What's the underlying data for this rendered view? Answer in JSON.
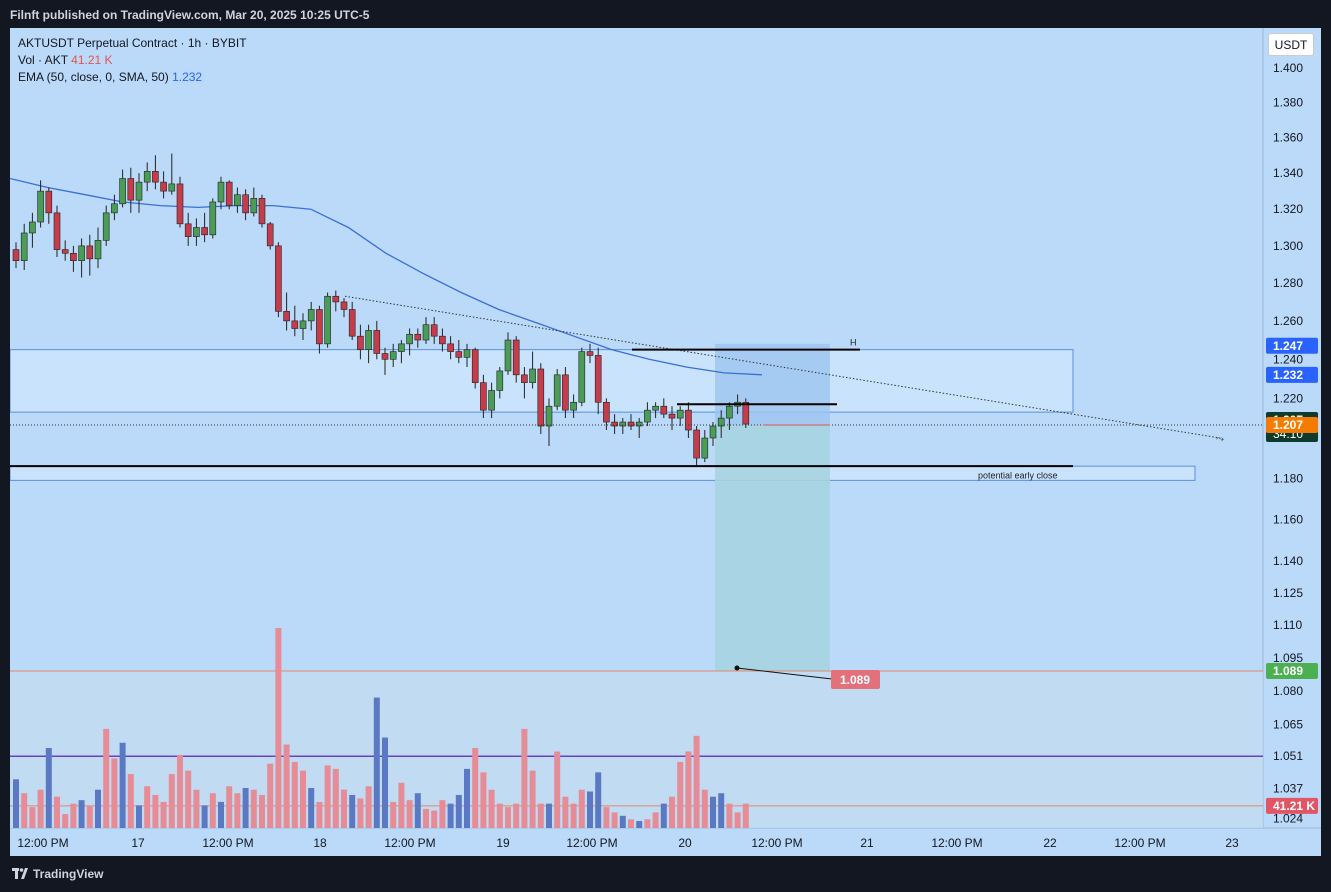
{
  "header": {
    "publish_text": "Filnft published on TradingView.com, Mar 20, 2025 10:25 UTC-5"
  },
  "legend": {
    "symbol_line": "AKTUSDT Perpetual Contract · 1h · BYBIT",
    "vol_label": "Vol · AKT",
    "vol_value": "41.21 K",
    "ema_label": "EMA (50, close, 0, SMA, 50)",
    "ema_value": "1.232"
  },
  "currency_button": "USDT",
  "footer": {
    "brand": "TradingView"
  },
  "colors": {
    "background": "#bbd9f8",
    "up": "#4a9c56",
    "down": "#c53c4a",
    "ema": "#3a6fd8",
    "volume_up": "#5b79c2",
    "volume_down": "#e58c97",
    "stop_zone": "#9ec4f0",
    "target_zone": "#a7d3e0"
  },
  "chart_data": {
    "type": "candlestick",
    "price_axis": {
      "ticks": [
        "1.400",
        "1.380",
        "1.360",
        "1.340",
        "1.320",
        "1.300",
        "1.280",
        "1.260",
        "1.240",
        "1.220",
        "1.200",
        "1.180",
        "1.160",
        "1.140",
        "1.125",
        "1.110",
        "1.095",
        "1.080",
        "1.065",
        "1.051",
        "1.037",
        "1.024"
      ],
      "scale": "log"
    },
    "time_axis": {
      "ticks": [
        "12:00 PM",
        "17",
        "12:00 PM",
        "18",
        "12:00 PM",
        "19",
        "12:00 PM",
        "20",
        "12:00 PM",
        "21",
        "12:00 PM",
        "22",
        "12:00 PM",
        "23"
      ]
    },
    "price_badges": [
      {
        "label": "1.247",
        "price": 1.247,
        "color": "#2962ff",
        "text": "#ffffff"
      },
      {
        "label": "1.232",
        "price": 1.232,
        "color": "#2962ff",
        "text": "#ffffff"
      },
      {
        "label": "1.207",
        "sub": "34:10",
        "price": 1.207,
        "color": "#0f3b2c",
        "text": "#ffffff"
      },
      {
        "label": "1.207",
        "price": 1.2065,
        "color": "#f57c00",
        "text": "#ffffff"
      },
      {
        "label": "1.089",
        "price": 1.089,
        "color": "#4caf50",
        "text": "#ffffff"
      },
      {
        "label": "41.21 K",
        "price": 1.0295,
        "color": "#e25565",
        "text": "#ffffff"
      }
    ],
    "target_label": "1.089",
    "annotations": {
      "h_marker": "H",
      "early_close": "potential early close"
    },
    "candles": [
      [
        1.298,
        1.302,
        1.288,
        1.292
      ],
      [
        1.292,
        1.312,
        1.287,
        1.307
      ],
      [
        1.307,
        1.318,
        1.299,
        1.313
      ],
      [
        1.313,
        1.336,
        1.31,
        1.33
      ],
      [
        1.33,
        1.332,
        1.312,
        1.318
      ],
      [
        1.318,
        1.322,
        1.294,
        1.298
      ],
      [
        1.298,
        1.303,
        1.292,
        1.296
      ],
      [
        1.296,
        1.3,
        1.286,
        1.292
      ],
      [
        1.292,
        1.304,
        1.283,
        1.3
      ],
      [
        1.3,
        1.306,
        1.284,
        1.293
      ],
      [
        1.293,
        1.31,
        1.288,
        1.303
      ],
      [
        1.303,
        1.322,
        1.3,
        1.318
      ],
      [
        1.318,
        1.328,
        1.314,
        1.323
      ],
      [
        1.323,
        1.342,
        1.321,
        1.337
      ],
      [
        1.337,
        1.343,
        1.318,
        1.325
      ],
      [
        1.325,
        1.34,
        1.318,
        1.335
      ],
      [
        1.335,
        1.346,
        1.33,
        1.341
      ],
      [
        1.341,
        1.35,
        1.331,
        1.335
      ],
      [
        1.335,
        1.341,
        1.326,
        1.33
      ],
      [
        1.33,
        1.351,
        1.328,
        1.334
      ],
      [
        1.334,
        1.338,
        1.31,
        1.312
      ],
      [
        1.312,
        1.318,
        1.3,
        1.305
      ],
      [
        1.305,
        1.315,
        1.3,
        1.31
      ],
      [
        1.31,
        1.318,
        1.302,
        1.306
      ],
      [
        1.306,
        1.326,
        1.304,
        1.324
      ],
      [
        1.324,
        1.338,
        1.32,
        1.335
      ],
      [
        1.335,
        1.336,
        1.32,
        1.322
      ],
      [
        1.322,
        1.332,
        1.318,
        1.328
      ],
      [
        1.328,
        1.331,
        1.314,
        1.318
      ],
      [
        1.318,
        1.332,
        1.316,
        1.326
      ],
      [
        1.326,
        1.328,
        1.31,
        1.312
      ],
      [
        1.312,
        1.313,
        1.298,
        1.3
      ],
      [
        1.3,
        1.302,
        1.262,
        1.265
      ],
      [
        1.265,
        1.275,
        1.255,
        1.26
      ],
      [
        1.26,
        1.268,
        1.252,
        1.256
      ],
      [
        1.256,
        1.264,
        1.25,
        1.26
      ],
      [
        1.26,
        1.27,
        1.255,
        1.266
      ],
      [
        1.266,
        1.268,
        1.243,
        1.248
      ],
      [
        1.248,
        1.275,
        1.246,
        1.273
      ],
      [
        1.273,
        1.276,
        1.265,
        1.27
      ],
      [
        1.27,
        1.272,
        1.262,
        1.266
      ],
      [
        1.266,
        1.27,
        1.25,
        1.252
      ],
      [
        1.252,
        1.258,
        1.24,
        1.245
      ],
      [
        1.245,
        1.258,
        1.238,
        1.255
      ],
      [
        1.255,
        1.26,
        1.24,
        1.243
      ],
      [
        1.243,
        1.246,
        1.232,
        1.24
      ],
      [
        1.24,
        1.248,
        1.236,
        1.244
      ],
      [
        1.244,
        1.25,
        1.238,
        1.248
      ],
      [
        1.248,
        1.256,
        1.242,
        1.253
      ],
      [
        1.253,
        1.256,
        1.246,
        1.25
      ],
      [
        1.25,
        1.262,
        1.248,
        1.258
      ],
      [
        1.258,
        1.262,
        1.248,
        1.252
      ],
      [
        1.252,
        1.256,
        1.244,
        1.248
      ],
      [
        1.248,
        1.252,
        1.24,
        1.244
      ],
      [
        1.244,
        1.25,
        1.238,
        1.241
      ],
      [
        1.241,
        1.248,
        1.236,
        1.245
      ],
      [
        1.245,
        1.246,
        1.225,
        1.228
      ],
      [
        1.228,
        1.232,
        1.21,
        1.214
      ],
      [
        1.214,
        1.228,
        1.21,
        1.224
      ],
      [
        1.224,
        1.236,
        1.22,
        1.234
      ],
      [
        1.234,
        1.254,
        1.232,
        1.25
      ],
      [
        1.25,
        1.252,
        1.228,
        1.232
      ],
      [
        1.232,
        1.236,
        1.22,
        1.228
      ],
      [
        1.228,
        1.244,
        1.225,
        1.235
      ],
      [
        1.235,
        1.238,
        1.202,
        1.206
      ],
      [
        1.206,
        1.22,
        1.196,
        1.216
      ],
      [
        1.216,
        1.235,
        1.214,
        1.232
      ],
      [
        1.232,
        1.236,
        1.21,
        1.214
      ],
      [
        1.214,
        1.222,
        1.21,
        1.218
      ],
      [
        1.218,
        1.246,
        1.216,
        1.244
      ],
      [
        1.244,
        1.248,
        1.238,
        1.242
      ],
      [
        1.242,
        1.246,
        1.212,
        1.218
      ],
      [
        1.218,
        1.22,
        1.204,
        1.208
      ],
      [
        1.208,
        1.212,
        1.202,
        1.206
      ],
      [
        1.206,
        1.21,
        1.202,
        1.208
      ],
      [
        1.208,
        1.212,
        1.204,
        1.206
      ],
      [
        1.206,
        1.21,
        1.2,
        1.208
      ],
      [
        1.208,
        1.218,
        1.206,
        1.214
      ],
      [
        1.214,
        1.218,
        1.21,
        1.216
      ],
      [
        1.216,
        1.22,
        1.21,
        1.212
      ],
      [
        1.212,
        1.216,
        1.204,
        1.21
      ],
      [
        1.21,
        1.216,
        1.206,
        1.214
      ],
      [
        1.214,
        1.218,
        1.2,
        1.204
      ],
      [
        1.204,
        1.206,
        1.186,
        1.19
      ],
      [
        1.19,
        1.204,
        1.188,
        1.2
      ],
      [
        1.2,
        1.208,
        1.196,
        1.206
      ],
      [
        1.206,
        1.214,
        1.2,
        1.21
      ],
      [
        1.21,
        1.218,
        1.204,
        1.216
      ],
      [
        1.216,
        1.222,
        1.212,
        1.218
      ],
      [
        1.218,
        1.22,
        1.205,
        1.207
      ]
    ],
    "volume": [
      [
        28,
        1
      ],
      [
        20,
        0
      ],
      [
        12,
        0
      ],
      [
        22,
        0
      ],
      [
        46,
        1
      ],
      [
        18,
        0
      ],
      [
        8,
        0
      ],
      [
        14,
        0
      ],
      [
        16,
        1
      ],
      [
        13,
        0
      ],
      [
        22,
        1
      ],
      [
        57,
        0
      ],
      [
        40,
        0
      ],
      [
        49,
        1
      ],
      [
        31,
        0
      ],
      [
        13,
        1
      ],
      [
        24,
        0
      ],
      [
        19,
        0
      ],
      [
        15,
        0
      ],
      [
        31,
        0
      ],
      [
        42,
        0
      ],
      [
        33,
        0
      ],
      [
        22,
        0
      ],
      [
        13,
        1
      ],
      [
        20,
        0
      ],
      [
        15,
        1
      ],
      [
        24,
        0
      ],
      [
        20,
        0
      ],
      [
        23,
        1
      ],
      [
        22,
        0
      ],
      [
        19,
        0
      ],
      [
        37,
        0
      ],
      [
        115,
        0
      ],
      [
        48,
        0
      ],
      [
        38,
        0
      ],
      [
        33,
        0
      ],
      [
        23,
        1
      ],
      [
        15,
        0
      ],
      [
        36,
        0
      ],
      [
        34,
        0
      ],
      [
        22,
        0
      ],
      [
        19,
        1
      ],
      [
        17,
        0
      ],
      [
        24,
        0
      ],
      [
        75,
        1
      ],
      [
        52,
        1
      ],
      [
        15,
        0
      ],
      [
        26,
        0
      ],
      [
        16,
        0
      ],
      [
        20,
        1
      ],
      [
        11,
        0
      ],
      [
        10,
        0
      ],
      [
        16,
        0
      ],
      [
        14,
        1
      ],
      [
        19,
        1
      ],
      [
        34,
        1
      ],
      [
        46,
        0
      ],
      [
        32,
        0
      ],
      [
        22,
        0
      ],
      [
        14,
        0
      ],
      [
        12,
        0
      ],
      [
        14,
        0
      ],
      [
        57,
        0
      ],
      [
        33,
        0
      ],
      [
        14,
        0
      ],
      [
        14,
        1
      ],
      [
        44,
        0
      ],
      [
        18,
        0
      ],
      [
        14,
        0
      ],
      [
        22,
        0
      ],
      [
        21,
        1
      ],
      [
        32,
        1
      ],
      [
        12,
        0
      ],
      [
        9,
        0
      ],
      [
        7,
        1
      ],
      [
        5,
        0
      ],
      [
        4,
        1
      ],
      [
        5,
        0
      ],
      [
        9,
        0
      ],
      [
        14,
        1
      ],
      [
        18,
        0
      ],
      [
        38,
        0
      ],
      [
        44,
        0
      ],
      [
        53,
        0
      ],
      [
        22,
        0
      ],
      [
        18,
        1
      ],
      [
        20,
        1
      ],
      [
        14,
        0
      ],
      [
        9,
        0
      ],
      [
        14,
        0
      ]
    ]
  }
}
